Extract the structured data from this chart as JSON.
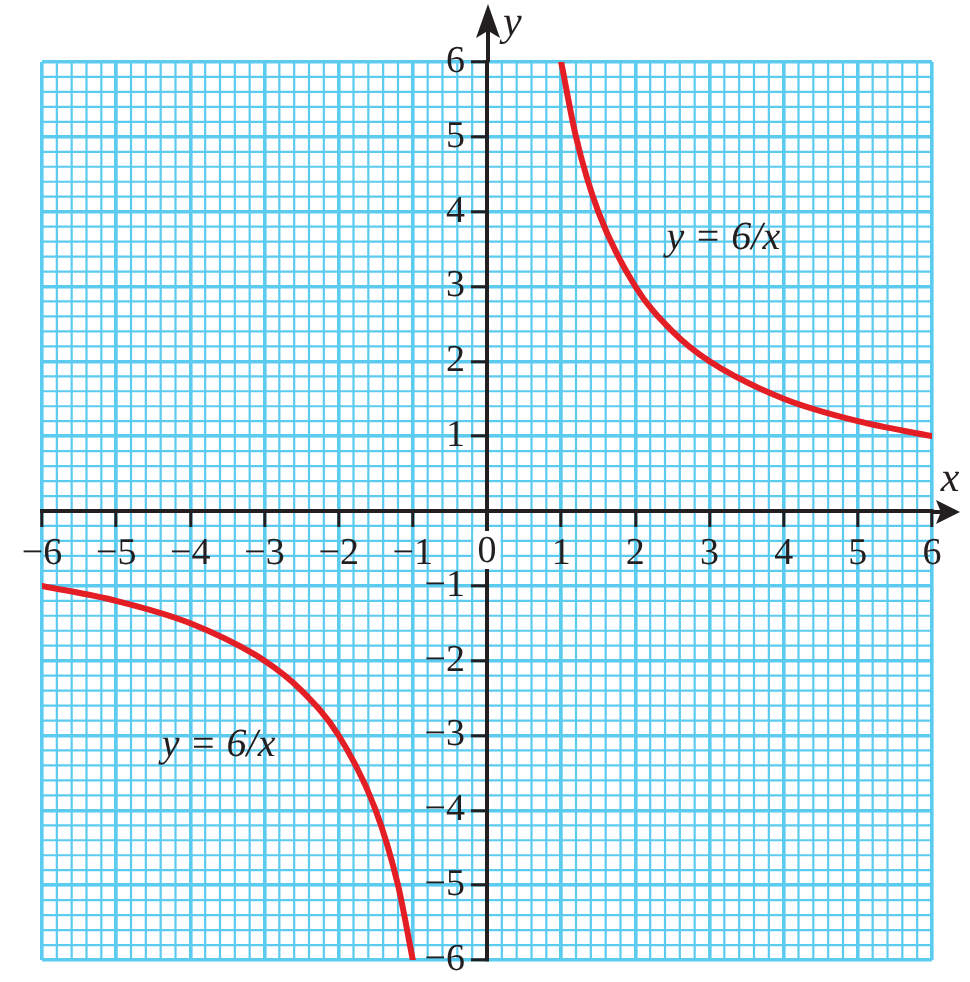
{
  "chart_data": {
    "type": "line",
    "xlabel": "x",
    "ylabel": "y",
    "xlim": [
      -6,
      6
    ],
    "ylim": [
      -6,
      6
    ],
    "xticks": [
      {
        "value": -6,
        "label": "−6"
      },
      {
        "value": -5,
        "label": "−5"
      },
      {
        "value": -4,
        "label": "−4"
      },
      {
        "value": -3,
        "label": "−3"
      },
      {
        "value": -2,
        "label": "−2"
      },
      {
        "value": -1,
        "label": "−1"
      },
      0,
      1,
      2,
      3,
      4,
      5,
      6
    ],
    "yticks": [
      {
        "value": -6,
        "label": "−6"
      },
      {
        "value": -5,
        "label": "−5"
      },
      {
        "value": -4,
        "label": "−4"
      },
      {
        "value": -3,
        "label": "−3"
      },
      {
        "value": -2,
        "label": "−2"
      },
      {
        "value": -1,
        "label": "−1"
      },
      1,
      2,
      3,
      4,
      5,
      6
    ],
    "grid": true,
    "marker": "none",
    "series": [
      {
        "name": "y = 6/x",
        "color": "#e31e24",
        "x": [
          1,
          1.2,
          1.5,
          2,
          2.5,
          3,
          4,
          5,
          6
        ],
        "values": [
          6,
          5,
          4,
          3,
          2.4,
          2,
          1.5,
          1.2,
          1
        ]
      },
      {
        "name": "y = 6/x",
        "color": "#e31e24",
        "x": [
          -6,
          -5,
          -4,
          -3,
          -2.5,
          -2,
          -1.5,
          -1.2,
          -1
        ],
        "values": [
          -1,
          -1.2,
          -1.5,
          -2,
          -2.4,
          -3,
          -4,
          -5,
          -6
        ]
      }
    ]
  }
}
